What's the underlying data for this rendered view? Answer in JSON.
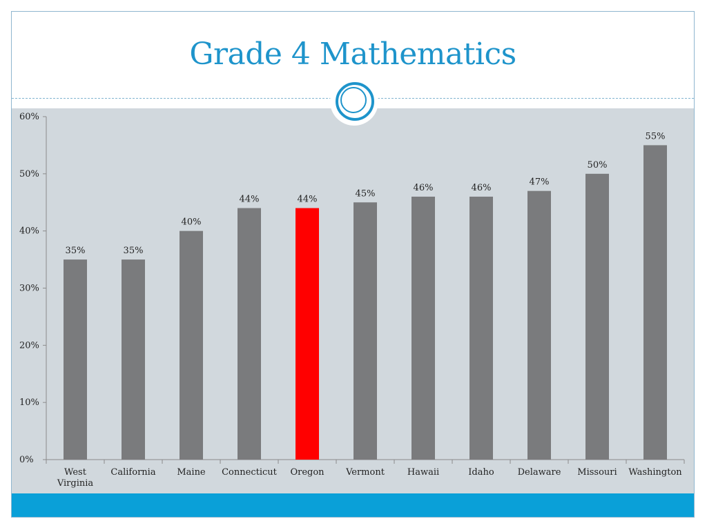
{
  "slide": {
    "title": "Grade 4 Mathematics"
  },
  "colors": {
    "title": "#1e94cb",
    "panel": "#d1d8dd",
    "bar": "#7a7b7d",
    "highlight_bar": "#ff0000",
    "footer": "#0aa0d8"
  },
  "chart_data": {
    "type": "bar",
    "title": "",
    "xlabel": "",
    "ylabel": "",
    "categories": [
      "West Virginia",
      "California",
      "Maine",
      "Connecticut",
      "Oregon",
      "Vermont",
      "Hawaii",
      "Idaho",
      "Delaware",
      "Missouri",
      "Washington"
    ],
    "values": [
      35,
      35,
      40,
      44,
      44,
      45,
      46,
      46,
      47,
      50,
      55
    ],
    "value_labels": [
      "35%",
      "35%",
      "40%",
      "44%",
      "44%",
      "45%",
      "46%",
      "46%",
      "47%",
      "50%",
      "55%"
    ],
    "highlight_category": "Oregon",
    "ylim": [
      0,
      60
    ],
    "yticks": [
      0,
      10,
      20,
      30,
      40,
      50,
      60
    ],
    "ytick_labels": [
      "0%",
      "10%",
      "20%",
      "30%",
      "40%",
      "50%",
      "60%"
    ],
    "grid": false,
    "legend": "none"
  }
}
